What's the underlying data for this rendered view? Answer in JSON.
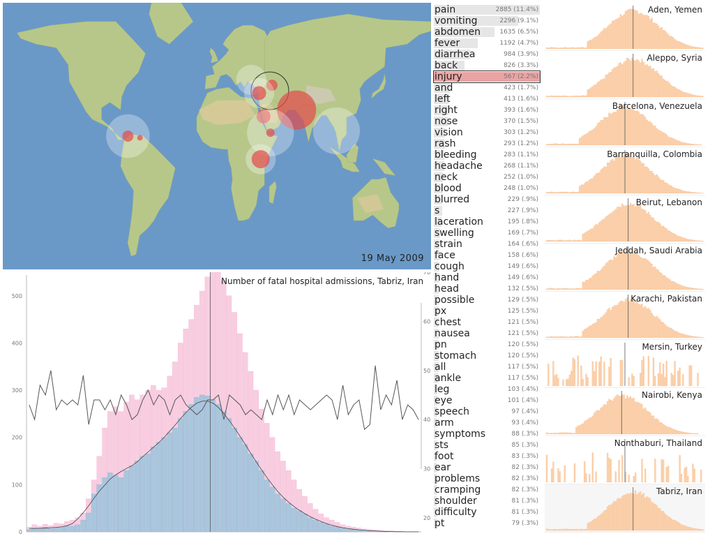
{
  "map": {
    "date": "19 May 2009",
    "markers": [
      {
        "name": "istanbul-marker",
        "lon": 28.9,
        "lat": 41.0,
        "count": 0,
        "halo": 18
      },
      {
        "name": "tabriz-marker",
        "lon": 46.3,
        "lat": 38.1,
        "count": 8,
        "halo": 0,
        "selected": true
      },
      {
        "name": "beirut-marker",
        "lon": 35.5,
        "lat": 33.9,
        "count": 10,
        "halo": 18
      },
      {
        "name": "karachi-marker",
        "lon": 67.0,
        "lat": 24.9,
        "count": 28,
        "halo": 0
      },
      {
        "name": "jeddah-marker",
        "lon": 39.2,
        "lat": 21.5,
        "count": 10,
        "halo": 0
      },
      {
        "name": "aden-marker",
        "lon": 45.0,
        "lat": 12.8,
        "count": 6,
        "halo": 28
      },
      {
        "name": "nairobi-marker",
        "lon": 36.8,
        "lat": -1.3,
        "count": 13,
        "halo": 18
      },
      {
        "name": "barranquilla-marker",
        "lon": -74.8,
        "lat": 11.0,
        "count": 8,
        "halo": 26
      },
      {
        "name": "barcelona-marker",
        "lon": -64.7,
        "lat": 10.1,
        "count": 4,
        "halo": 0
      },
      {
        "name": "bangkok-marker",
        "lon": 100.5,
        "lat": 13.8,
        "count": 0,
        "halo": 28
      }
    ]
  },
  "main_chart": {
    "title": "Number of fatal hospital admissions, Tabriz, Iran"
  },
  "chart_data": {
    "type": "bar",
    "title": "Number of fatal hospital admissions, Tabriz, Iran",
    "ylim": [
      0,
      550
    ],
    "y2lim": [
      20,
      70
    ],
    "yticks": [
      0,
      100,
      200,
      300,
      400,
      500
    ],
    "y2ticks": [
      20,
      30,
      40,
      50,
      60,
      70
    ],
    "series": [
      {
        "kind": "bar",
        "color": "#f9cde0",
        "values": [
          10,
          15,
          12,
          16,
          13,
          18,
          17,
          22,
          25,
          30,
          40,
          70,
          110,
          160,
          220,
          255,
          265,
          255,
          275,
          290,
          280,
          290,
          300,
          310,
          300,
          305,
          330,
          360,
          400,
          430,
          450,
          480,
          510,
          540,
          552,
          550,
          532,
          500,
          465,
          420,
          380,
          340,
          300,
          260,
          230,
          200,
          170,
          150,
          130,
          110,
          90,
          75,
          60,
          48,
          38,
          30,
          25,
          20,
          15,
          12,
          10,
          8,
          6,
          5,
          4,
          3,
          2,
          2,
          1,
          1,
          0,
          0,
          0
        ]
      },
      {
        "kind": "bar",
        "color": "#a9c6dd",
        "values": [
          5,
          8,
          6,
          10,
          7,
          9,
          10,
          12,
          12,
          15,
          25,
          40,
          80,
          100,
          115,
          125,
          120,
          115,
          130,
          140,
          150,
          160,
          165,
          180,
          190,
          200,
          210,
          220,
          240,
          255,
          270,
          285,
          290,
          288,
          280,
          270,
          255,
          240,
          220,
          200,
          185,
          165,
          150,
          130,
          110,
          95,
          80,
          70,
          60,
          50,
          45,
          38,
          30,
          25,
          20,
          16,
          12,
          10,
          8,
          6,
          5,
          4,
          3,
          2,
          2,
          1,
          1,
          0,
          0,
          0,
          0,
          0,
          0
        ]
      },
      {
        "kind": "line",
        "color": "#555",
        "axis": "right",
        "values": [
          43,
          40,
          47,
          45,
          50,
          42,
          44,
          43,
          44,
          43,
          49,
          39,
          44,
          44,
          42,
          44,
          41,
          45,
          43,
          40,
          41,
          44,
          46,
          43,
          45,
          44,
          41,
          44,
          45,
          43,
          42,
          41,
          42,
          44,
          44,
          45,
          40,
          45,
          44,
          43,
          41,
          42,
          41,
          40,
          44,
          41,
          45,
          42,
          45,
          41,
          44,
          43,
          42,
          43,
          44,
          45,
          44,
          40,
          47,
          41,
          43,
          44,
          38,
          39,
          51,
          42,
          45,
          43,
          48,
          40,
          43,
          42,
          40
        ]
      }
    ]
  },
  "symptoms": [
    {
      "label": "pain",
      "count": "2885 (11.4%)",
      "share": 11.4
    },
    {
      "label": "vomiting",
      "count": "2296 (9.1%)",
      "share": 9.1
    },
    {
      "label": "abdomen",
      "count": "1635 (6.5%)",
      "share": 6.5
    },
    {
      "label": "fever",
      "count": "1192 (4.7%)",
      "share": 4.7
    },
    {
      "label": "diarrhea",
      "count": "984 (3.9%)",
      "share": 3.9
    },
    {
      "label": "back",
      "count": "826 (3.3%)",
      "share": 3.3
    },
    {
      "label": "injury",
      "count": "567 (2.2%)",
      "share": 2.2,
      "selected": true
    },
    {
      "label": "and",
      "count": "423 (1.7%)",
      "share": 1.7
    },
    {
      "label": "left",
      "count": "413 (1.6%)",
      "share": 1.6
    },
    {
      "label": "right",
      "count": "393 (1.6%)",
      "share": 1.6
    },
    {
      "label": "nose",
      "count": "370 (1.5%)",
      "share": 1.5
    },
    {
      "label": "vision",
      "count": "303 (1.2%)",
      "share": 1.2
    },
    {
      "label": "rash",
      "count": "293 (1.2%)",
      "share": 1.2
    },
    {
      "label": "bleeding",
      "count": "283 (1.1%)",
      "share": 1.1
    },
    {
      "label": "headache",
      "count": "268 (1.1%)",
      "share": 1.1
    },
    {
      "label": "neck",
      "count": "252 (1.0%)",
      "share": 1.0
    },
    {
      "label": "blood",
      "count": "248 (1.0%)",
      "share": 1.0
    },
    {
      "label": "blurred",
      "count": "229 (.9%)",
      "share": 0.9
    },
    {
      "label": "s",
      "count": "227 (.9%)",
      "share": 0.9
    },
    {
      "label": "laceration",
      "count": "195 (.8%)",
      "share": 0.8
    },
    {
      "label": "swelling",
      "count": "169 (.7%)",
      "share": 0.7
    },
    {
      "label": "strain",
      "count": "164 (.6%)",
      "share": 0.6
    },
    {
      "label": "face",
      "count": "158 (.6%)",
      "share": 0.6
    },
    {
      "label": "cough",
      "count": "149 (.6%)",
      "share": 0.6
    },
    {
      "label": "hand",
      "count": "149 (.6%)",
      "share": 0.6
    },
    {
      "label": "head",
      "count": "132 (.5%)",
      "share": 0.5
    },
    {
      "label": "possible",
      "count": "129 (.5%)",
      "share": 0.5
    },
    {
      "label": "px",
      "count": "125 (.5%)",
      "share": 0.5
    },
    {
      "label": "chest",
      "count": "121 (.5%)",
      "share": 0.5
    },
    {
      "label": "nausea",
      "count": "121 (.5%)",
      "share": 0.5
    },
    {
      "label": "pn",
      "count": "120 (.5%)",
      "share": 0.5
    },
    {
      "label": "stomach",
      "count": "120 (.5%)",
      "share": 0.5
    },
    {
      "label": "all",
      "count": "117 (.5%)",
      "share": 0.5
    },
    {
      "label": "ankle",
      "count": "117 (.5%)",
      "share": 0.5
    },
    {
      "label": "leg",
      "count": "103 (.4%)",
      "share": 0.4
    },
    {
      "label": "eye",
      "count": "101 (.4%)",
      "share": 0.4
    },
    {
      "label": "speech",
      "count": "97 (.4%)",
      "share": 0.4
    },
    {
      "label": "arm",
      "count": "93 (.4%)",
      "share": 0.4
    },
    {
      "label": "symptoms",
      "count": "88 (.3%)",
      "share": 0.3
    },
    {
      "label": "sts",
      "count": "85 (.3%)",
      "share": 0.3
    },
    {
      "label": "foot",
      "count": "83 (.3%)",
      "share": 0.3
    },
    {
      "label": "ear",
      "count": "82 (.3%)",
      "share": 0.3
    },
    {
      "label": "problems",
      "count": "82 (.3%)",
      "share": 0.3
    },
    {
      "label": "cramping",
      "count": "82 (.3%)",
      "share": 0.3
    },
    {
      "label": "shoulder",
      "count": "81 (.3%)",
      "share": 0.3
    },
    {
      "label": "difficulty",
      "count": "81 (.3%)",
      "share": 0.3
    },
    {
      "label": "pt",
      "count": "79 (.3%)",
      "share": 0.3
    }
  ],
  "cities": [
    {
      "name": "Aden, Yemen",
      "shape": "bell",
      "peak": 0.55
    },
    {
      "name": "Aleppo, Syria",
      "shape": "bell",
      "peak": 0.55
    },
    {
      "name": "Barcelona, Venezuela",
      "shape": "bell",
      "peak": 0.5
    },
    {
      "name": "Barranquilla, Colombia",
      "shape": "bell",
      "peak": 0.5
    },
    {
      "name": "Beirut, Lebanon",
      "shape": "bell",
      "peak": 0.52
    },
    {
      "name": "Jeddah, Saudi Arabia",
      "shape": "bell",
      "peak": 0.52
    },
    {
      "name": "Karachi, Pakistan",
      "shape": "bell",
      "peak": 0.52
    },
    {
      "name": "Mersin, Turkey",
      "shape": "sparse",
      "peak": 0.5
    },
    {
      "name": "Nairobi, Kenya",
      "shape": "bell",
      "peak": 0.48
    },
    {
      "name": "Nonthaburi, Thailand",
      "shape": "sparse",
      "peak": 0.5
    },
    {
      "name": "Tabriz, Iran",
      "shape": "bell",
      "peak": 0.55,
      "selected": true
    }
  ],
  "colors": {
    "ocean": "#6a99c8",
    "land": "#b7c78a",
    "marker": "#e34a4a",
    "pink": "#f9cde0",
    "blue": "#a9c6dd",
    "peach": "#fcd2ac"
  }
}
